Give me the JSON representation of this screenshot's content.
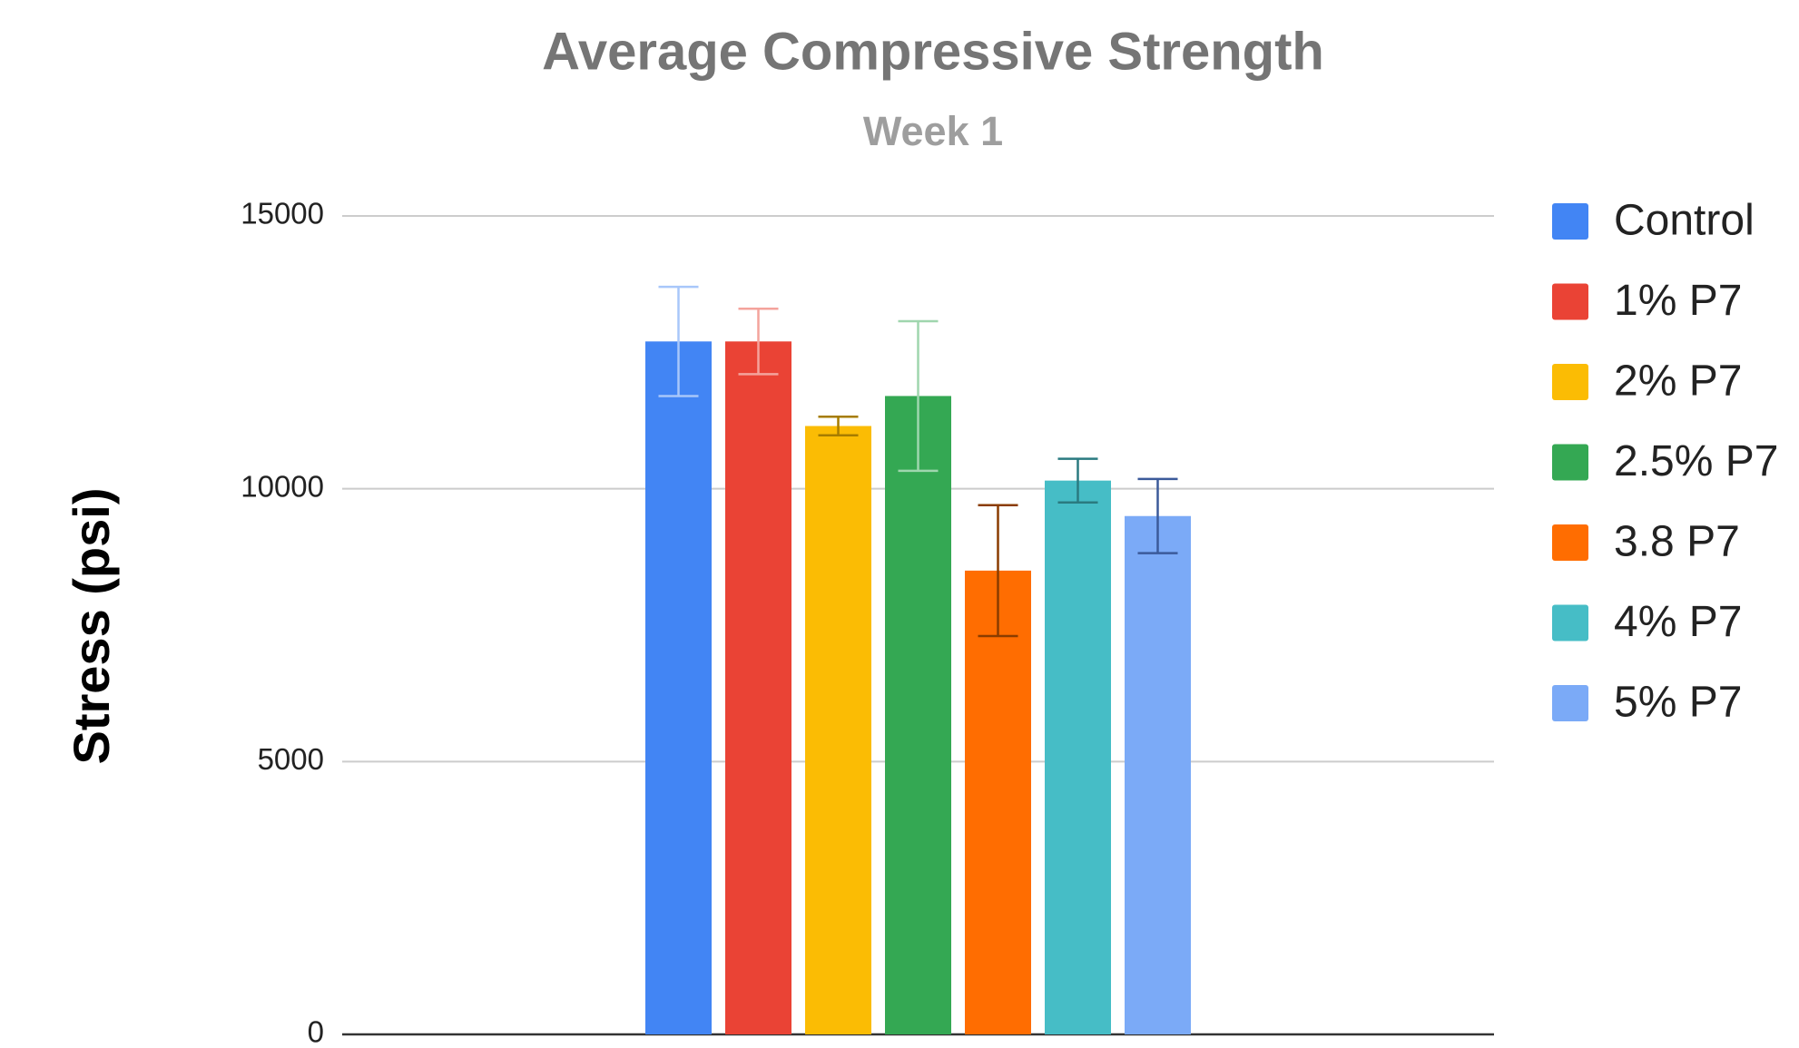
{
  "chart_data": {
    "type": "bar",
    "title": "Average Compressive Strength",
    "subtitle": "Week 1",
    "y_label": "Stress (psi)",
    "categories": [
      null
    ],
    "series": [
      {
        "name": "Control",
        "color": "#4285f4",
        "error_color": "#a8c7fa",
        "values": [
          12700
        ],
        "errors": [
          1000
        ]
      },
      {
        "name": "1% P7",
        "color": "#ea4335",
        "error_color": "#f4a39c",
        "values": [
          12700
        ],
        "errors": [
          600
        ]
      },
      {
        "name": "2% P7",
        "color": "#fbbc04",
        "error_color": "#a67c00",
        "values": [
          11150
        ],
        "errors": [
          170
        ]
      },
      {
        "name": "2.5% P7",
        "color": "#34a853",
        "error_color": "#9fd6ae",
        "values": [
          11700
        ],
        "errors": [
          1370
        ]
      },
      {
        "name": "3.8 P7",
        "color": "#ff6d01",
        "error_color": "#8a3c00",
        "values": [
          8500
        ],
        "errors": [
          1200
        ]
      },
      {
        "name": "4% P7",
        "color": "#46bdc6",
        "error_color": "#2a7a80",
        "values": [
          10150
        ],
        "errors": [
          400
        ]
      },
      {
        "name": "5% P7",
        "color": "#7baaf7",
        "error_color": "#3b5a9a",
        "values": [
          9500
        ],
        "errors": [
          680
        ]
      }
    ],
    "ylim": [
      0,
      15000
    ],
    "yticks": [
      0,
      5000,
      10000,
      15000
    ],
    "grid": true,
    "legend": "right"
  }
}
